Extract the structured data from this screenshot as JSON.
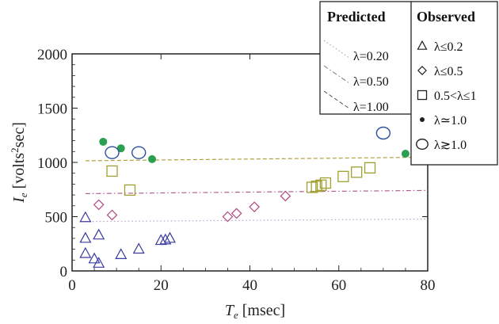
{
  "chart_data": {
    "type": "scatter",
    "xlabel_main": "T",
    "xlabel_sub": "e",
    "xlabel_unit": " [msec]",
    "ylabel_main": "I",
    "ylabel_sub": "e",
    "ylabel_unit": " [volts",
    "ylabel_sup": "2",
    "ylabel_unit2": "sec]",
    "xlim": [
      0,
      80
    ],
    "ylim": [
      0,
      2000
    ],
    "xticks": [
      "0",
      "20",
      "40",
      "60",
      "80"
    ],
    "yticks": [
      "0",
      "500",
      "1000",
      "1500",
      "2000"
    ],
    "xtick_values": [
      0,
      20,
      40,
      60,
      80
    ],
    "ytick_values": [
      0,
      500,
      1000,
      1500,
      2000
    ],
    "grid": false,
    "legend_predicted": {
      "title": "Predicted",
      "entries": [
        {
          "label": "λ=0.20",
          "style": "dotted",
          "color": "#a09aa8"
        },
        {
          "label": "λ=0.50",
          "style": "dashdot",
          "color": "#777777"
        },
        {
          "label": "λ=1.00",
          "style": "dashed",
          "color": "#555555"
        }
      ]
    },
    "legend_observed": {
      "title": "Observed",
      "entries": [
        {
          "label": "λ≤0.2",
          "marker": "triangle"
        },
        {
          "label": "λ≤0.5",
          "marker": "diamond"
        },
        {
          "label": "0.5<λ≤1",
          "marker": "square"
        },
        {
          "label": "λ≃1.0",
          "marker": "dot"
        },
        {
          "label": "λ≳1.0",
          "marker": "circle"
        }
      ]
    },
    "lines": [
      {
        "name": "λ=0.20",
        "x": [
          3,
          80
        ],
        "y": [
          455,
          478
        ],
        "color": "#b8a0c8",
        "style": "dotted"
      },
      {
        "name": "λ=0.50",
        "x": [
          3,
          80
        ],
        "y": [
          712,
          742
        ],
        "color": "#b06090",
        "style": "dashdot"
      },
      {
        "name": "λ=1.00",
        "x": [
          3,
          80
        ],
        "y": [
          1015,
          1048
        ],
        "color": "#b0a040",
        "style": "dashed"
      }
    ],
    "series": [
      {
        "name": "λ≤0.2",
        "marker": "triangle",
        "color": "#3a3aa0",
        "x": [
          3,
          3,
          3,
          5,
          6,
          6,
          11,
          15,
          20,
          21,
          22
        ],
        "y": [
          490,
          300,
          160,
          110,
          70,
          330,
          150,
          200,
          280,
          285,
          300
        ]
      },
      {
        "name": "λ≤0.5",
        "marker": "diamond",
        "color": "#b04880",
        "x": [
          6,
          9,
          35,
          37,
          41,
          48
        ],
        "y": [
          610,
          515,
          500,
          530,
          590,
          690
        ]
      },
      {
        "name": "0.5<λ≤1",
        "marker": "square",
        "color": "#a0a030",
        "x": [
          9,
          13,
          54,
          55,
          56,
          57,
          61,
          64,
          67
        ],
        "y": [
          920,
          745,
          770,
          780,
          790,
          810,
          870,
          910,
          950
        ]
      },
      {
        "name": "λ≃1.0",
        "marker": "dot",
        "color": "#2aa050",
        "x": [
          7,
          11,
          18,
          75
        ],
        "y": [
          1190,
          1130,
          1030,
          1080
        ]
      },
      {
        "name": "λ≳1.0",
        "marker": "circle",
        "color": "#2a50a0",
        "x": [
          9,
          15,
          70
        ],
        "y": [
          1090,
          1090,
          1270
        ]
      }
    ]
  }
}
